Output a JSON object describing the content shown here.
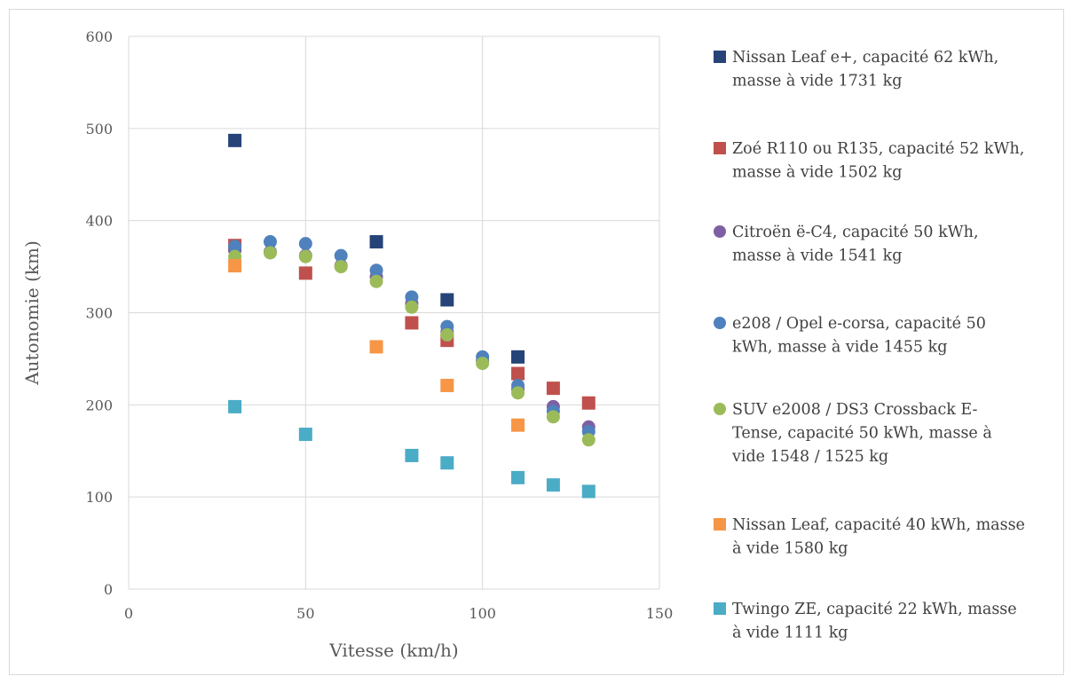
{
  "chart_data": {
    "type": "scatter",
    "title": "",
    "xlabel": "Vitesse (km/h)",
    "ylabel": "Autonomie (km)",
    "xlim": [
      0,
      150
    ],
    "ylim": [
      0,
      600
    ],
    "xticks": [
      0,
      50,
      100,
      150
    ],
    "yticks": [
      0,
      100,
      200,
      300,
      400,
      500,
      600
    ],
    "xtick_labels": [
      "0",
      "50",
      "100",
      "150"
    ],
    "ytick_labels": [
      "0",
      "100",
      "200",
      "300",
      "400",
      "500",
      "600"
    ],
    "grid": true,
    "legend_position": "right",
    "series": [
      {
        "name": "Nissan Leaf e+, capacité 62 kWh, masse à vide 1731 kg",
        "legend_lines": [
          "Nissan Leaf e+, capacité 62 kWh,",
          "masse à vide 1731 kg"
        ],
        "marker": "square",
        "color": "#264478",
        "points": [
          [
            30,
            487
          ],
          [
            70,
            377
          ],
          [
            90,
            314
          ],
          [
            110,
            252
          ]
        ]
      },
      {
        "name": "Zoé R110 ou R135, capacité 52 kWh, masse à vide 1502 kg",
        "legend_lines": [
          "Zoé R110 ou R135, capacité 52 kWh,",
          "masse à vide 1502 kg"
        ],
        "marker": "square",
        "color": "#c0504d",
        "points": [
          [
            30,
            373
          ],
          [
            50,
            343
          ],
          [
            80,
            289
          ],
          [
            90,
            270
          ],
          [
            110,
            234
          ],
          [
            120,
            218
          ],
          [
            130,
            202
          ]
        ]
      },
      {
        "name": "Citroën ë-C4, capacité 50 kWh, masse à vide 1541 kg",
        "legend_lines": [
          "Citroën ë-C4, capacité 50 kWh,",
          "masse à vide 1541 kg"
        ],
        "marker": "circle",
        "color": "#7f5fa3",
        "points": [
          [
            30,
            368
          ],
          [
            40,
            366
          ],
          [
            50,
            362
          ],
          [
            60,
            351
          ],
          [
            70,
            339
          ],
          [
            80,
            310
          ],
          [
            90,
            279
          ],
          [
            100,
            248
          ],
          [
            110,
            217
          ],
          [
            120,
            198
          ],
          [
            130,
            176
          ]
        ]
      },
      {
        "name": "e208 / Opel e-corsa, capacité 50 kWh, masse à vide 1455 kg",
        "legend_lines": [
          "e208 / Opel e-corsa, capacité 50",
          "kWh, masse à vide 1455 kg"
        ],
        "marker": "circle",
        "color": "#4f81bd",
        "points": [
          [
            30,
            372
          ],
          [
            40,
            377
          ],
          [
            50,
            375
          ],
          [
            60,
            362
          ],
          [
            70,
            346
          ],
          [
            80,
            317
          ],
          [
            90,
            285
          ],
          [
            100,
            252
          ],
          [
            110,
            221
          ],
          [
            120,
            193
          ],
          [
            130,
            171
          ]
        ]
      },
      {
        "name": "SUV e2008 / DS3 Crossback E-Tense, capacité 50 kWh, masse à vide 1548 / 1525 kg",
        "legend_lines": [
          "SUV e2008 / DS3 Crossback E-",
          "Tense, capacité 50 kWh, masse à",
          "vide 1548 / 1525 kg"
        ],
        "marker": "circle",
        "color": "#9bbb59",
        "points": [
          [
            30,
            361
          ],
          [
            40,
            365
          ],
          [
            50,
            361
          ],
          [
            60,
            350
          ],
          [
            70,
            334
          ],
          [
            80,
            306
          ],
          [
            90,
            276
          ],
          [
            100,
            245
          ],
          [
            110,
            213
          ],
          [
            120,
            187
          ],
          [
            130,
            162
          ]
        ]
      },
      {
        "name": "Nissan Leaf, capacité 40 kWh, masse à vide 1580 kg",
        "legend_lines": [
          "Nissan Leaf, capacité 40 kWh, masse",
          "à vide 1580 kg"
        ],
        "marker": "square",
        "color": "#f79646",
        "points": [
          [
            30,
            351
          ],
          [
            70,
            263
          ],
          [
            90,
            221
          ],
          [
            110,
            178
          ]
        ]
      },
      {
        "name": "Twingo ZE, capacité 22 kWh, masse à vide 1111 kg",
        "legend_lines": [
          "Twingo ZE, capacité 22 kWh, masse",
          "à vide 1111 kg"
        ],
        "marker": "square",
        "color": "#4bacc6",
        "points": [
          [
            30,
            198
          ],
          [
            50,
            168
          ],
          [
            80,
            145
          ],
          [
            90,
            137
          ],
          [
            110,
            121
          ],
          [
            120,
            113
          ],
          [
            130,
            106
          ]
        ]
      }
    ]
  }
}
